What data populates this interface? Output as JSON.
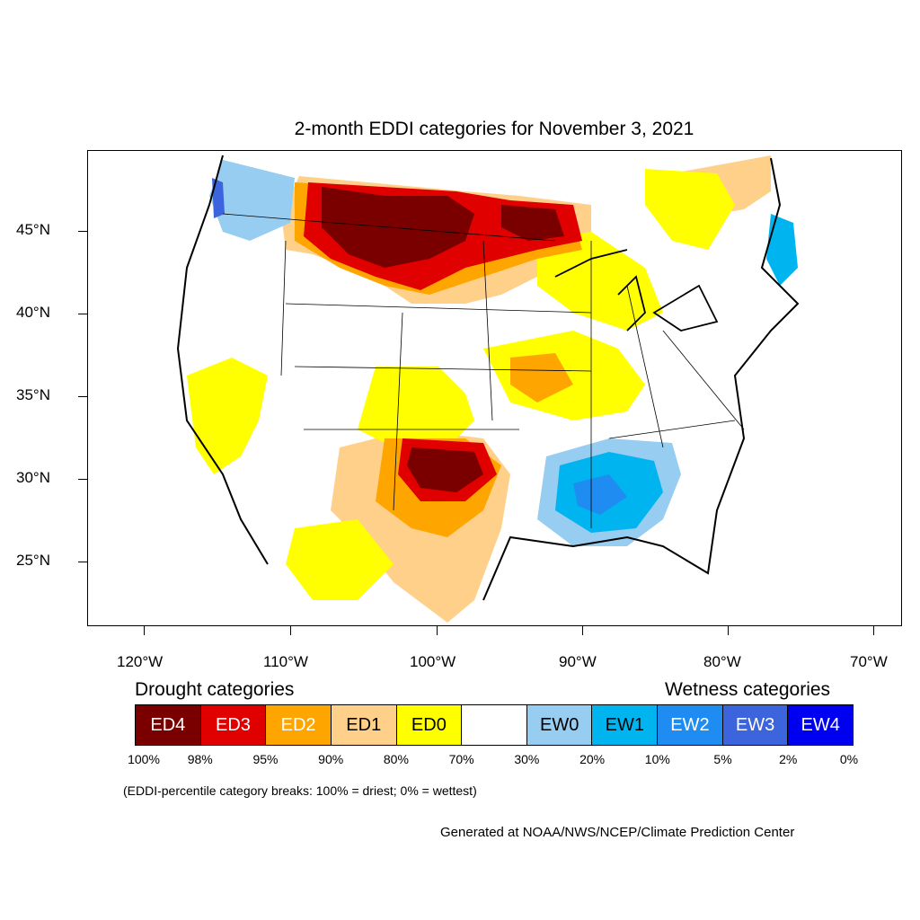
{
  "title": "2-month EDDI categories for November 3, 2021",
  "lat_labels": [
    "45°N",
    "40°N",
    "35°N",
    "30°N",
    "25°N"
  ],
  "lon_labels": [
    "120°W",
    "110°W",
    "100°W",
    "90°W",
    "80°W",
    "70°W"
  ],
  "legend": {
    "drought_heading": "Drought categories",
    "wetness_heading": "Wetness categories",
    "categories": [
      {
        "label": "ED4",
        "color": "#7a0000",
        "text_color": "#ffffff"
      },
      {
        "label": "ED3",
        "color": "#e00000",
        "text_color": "#ffffff"
      },
      {
        "label": "ED2",
        "color": "#ffa500",
        "text_color": "#ffffff"
      },
      {
        "label": "ED1",
        "color": "#ffd08a",
        "text_color": "#000000"
      },
      {
        "label": "ED0",
        "color": "#ffff00",
        "text_color": "#000000"
      },
      {
        "label": "",
        "color": "#ffffff",
        "text_color": "#000000"
      },
      {
        "label": "EW0",
        "color": "#96cdf0",
        "text_color": "#000000"
      },
      {
        "label": "EW1",
        "color": "#00b4f0",
        "text_color": "#000000"
      },
      {
        "label": "EW2",
        "color": "#1e8cf0",
        "text_color": "#ffffff"
      },
      {
        "label": "EW3",
        "color": "#3c64dc",
        "text_color": "#ffffff"
      },
      {
        "label": "EW4",
        "color": "#0000f0",
        "text_color": "#ffffff"
      }
    ],
    "breaks": [
      "100%",
      "98%",
      "95%",
      "90%",
      "80%",
      "70%",
      "30%",
      "20%",
      "10%",
      "5%",
      "2%",
      "0%"
    ]
  },
  "note": "(EDDI-percentile category breaks: 100% = driest; 0% = wettest)",
  "credit": "Generated at NOAA/NWS/NCEP/Climate Prediction Center"
}
